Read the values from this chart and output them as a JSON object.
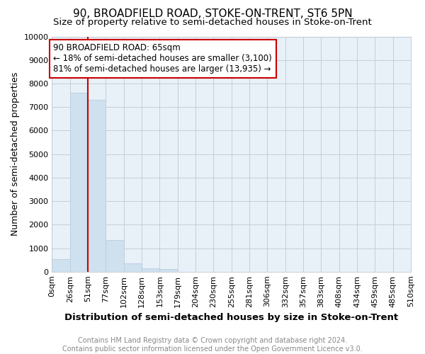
{
  "title": "90, BROADFIELD ROAD, STOKE-ON-TRENT, ST6 5PN",
  "subtitle": "Size of property relative to semi-detached houses in Stoke-on-Trent",
  "xlabel": "Distribution of semi-detached houses by size in Stoke-on-Trent",
  "ylabel": "Number of semi-detached properties",
  "footer": "Contains HM Land Registry data © Crown copyright and database right 2024.\nContains public sector information licensed under the Open Government Licence v3.0.",
  "bin_labels": [
    "0sqm",
    "26sqm",
    "51sqm",
    "77sqm",
    "102sqm",
    "128sqm",
    "153sqm",
    "179sqm",
    "204sqm",
    "230sqm",
    "255sqm",
    "281sqm",
    "306sqm",
    "332sqm",
    "357sqm",
    "383sqm",
    "408sqm",
    "434sqm",
    "459sqm",
    "485sqm",
    "510sqm"
  ],
  "bar_heights": [
    550,
    7600,
    7300,
    1350,
    350,
    150,
    100,
    0,
    0,
    0,
    0,
    0,
    0,
    0,
    0,
    0,
    0,
    0,
    0,
    0
  ],
  "bar_color": "#cfe0ef",
  "bar_edge_color": "#b8cfe0",
  "vline_x": 2,
  "vline_color": "#cc0000",
  "annotation_text": "90 BROADFIELD ROAD: 65sqm\n← 18% of semi-detached houses are smaller (3,100)\n81% of semi-detached houses are larger (13,935) →",
  "annotation_box_color": "#ffffff",
  "annotation_box_edge": "#cc0000",
  "bg_color": "#e8f0f8",
  "ylim": [
    0,
    10000
  ],
  "title_fontsize": 11,
  "subtitle_fontsize": 9.5,
  "tick_fontsize": 8,
  "ylabel_fontsize": 9,
  "xlabel_fontsize": 9.5,
  "footer_fontsize": 7,
  "annotation_fontsize": 8.5
}
